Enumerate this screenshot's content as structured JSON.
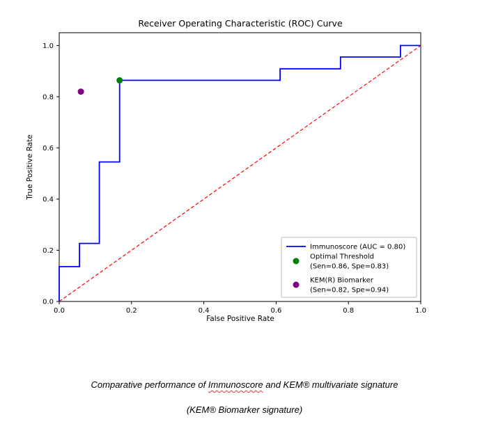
{
  "page": {
    "background": "#ffffff"
  },
  "chart_data": {
    "type": "line",
    "title": "Receiver Operating Characteristic (ROC) Curve",
    "xlabel": "False Positive Rate",
    "ylabel": "True Positive Rate",
    "xlim": [
      0.0,
      1.0
    ],
    "ylim": [
      0.0,
      1.05
    ],
    "x_ticks": [
      "0.0",
      "0.2",
      "0.4",
      "0.6",
      "0.8",
      "1.0"
    ],
    "y_ticks": [
      "0.0",
      "0.2",
      "0.4",
      "0.6",
      "0.8",
      "1.0"
    ],
    "grid": false,
    "legend_position": "lower right",
    "series": [
      {
        "name": "immunoscore-roc",
        "label": "Immunoscore (AUC = 0.80)",
        "color": "#0000ff",
        "style": "solid",
        "points": [
          [
            0.0,
            0.0
          ],
          [
            0.0,
            0.136
          ],
          [
            0.056,
            0.136
          ],
          [
            0.056,
            0.227
          ],
          [
            0.111,
            0.227
          ],
          [
            0.111,
            0.545
          ],
          [
            0.167,
            0.545
          ],
          [
            0.167,
            0.864
          ],
          [
            0.611,
            0.864
          ],
          [
            0.611,
            0.909
          ],
          [
            0.778,
            0.909
          ],
          [
            0.778,
            0.955
          ],
          [
            0.944,
            0.955
          ],
          [
            0.944,
            1.0
          ],
          [
            1.0,
            1.0
          ]
        ]
      },
      {
        "name": "chance-diagonal",
        "label": "",
        "color": "#ff0000",
        "style": "dashed",
        "points": [
          [
            0.0,
            0.0
          ],
          [
            1.0,
            1.0
          ]
        ]
      }
    ],
    "markers": [
      {
        "name": "optimal-threshold",
        "x": 0.167,
        "y": 0.864,
        "color": "#008000"
      },
      {
        "name": "kem-biomarker",
        "x": 0.06,
        "y": 0.82,
        "color": "#800080"
      }
    ],
    "legend": [
      {
        "marker": "line",
        "color": "#0000ff",
        "label": "Immunoscore (AUC = 0.80)",
        "label2": ""
      },
      {
        "marker": "dot",
        "color": "#008000",
        "label": "Optimal Threshold",
        "label2": "(Sen=0.86, Spe=0.83)"
      },
      {
        "marker": "dot",
        "color": "#800080",
        "label": "KEM(R) Biomarker",
        "label2": "(Sen=0.82, Spe=0.94)"
      }
    ],
    "auc": 0.8
  },
  "caption": {
    "line1_prefix": "Comparative performance of ",
    "line1_misspelled": "Immunoscore",
    "line1_suffix": " and KEM® multivariate signature",
    "line2": "(KEM® Biomarker signature)"
  }
}
